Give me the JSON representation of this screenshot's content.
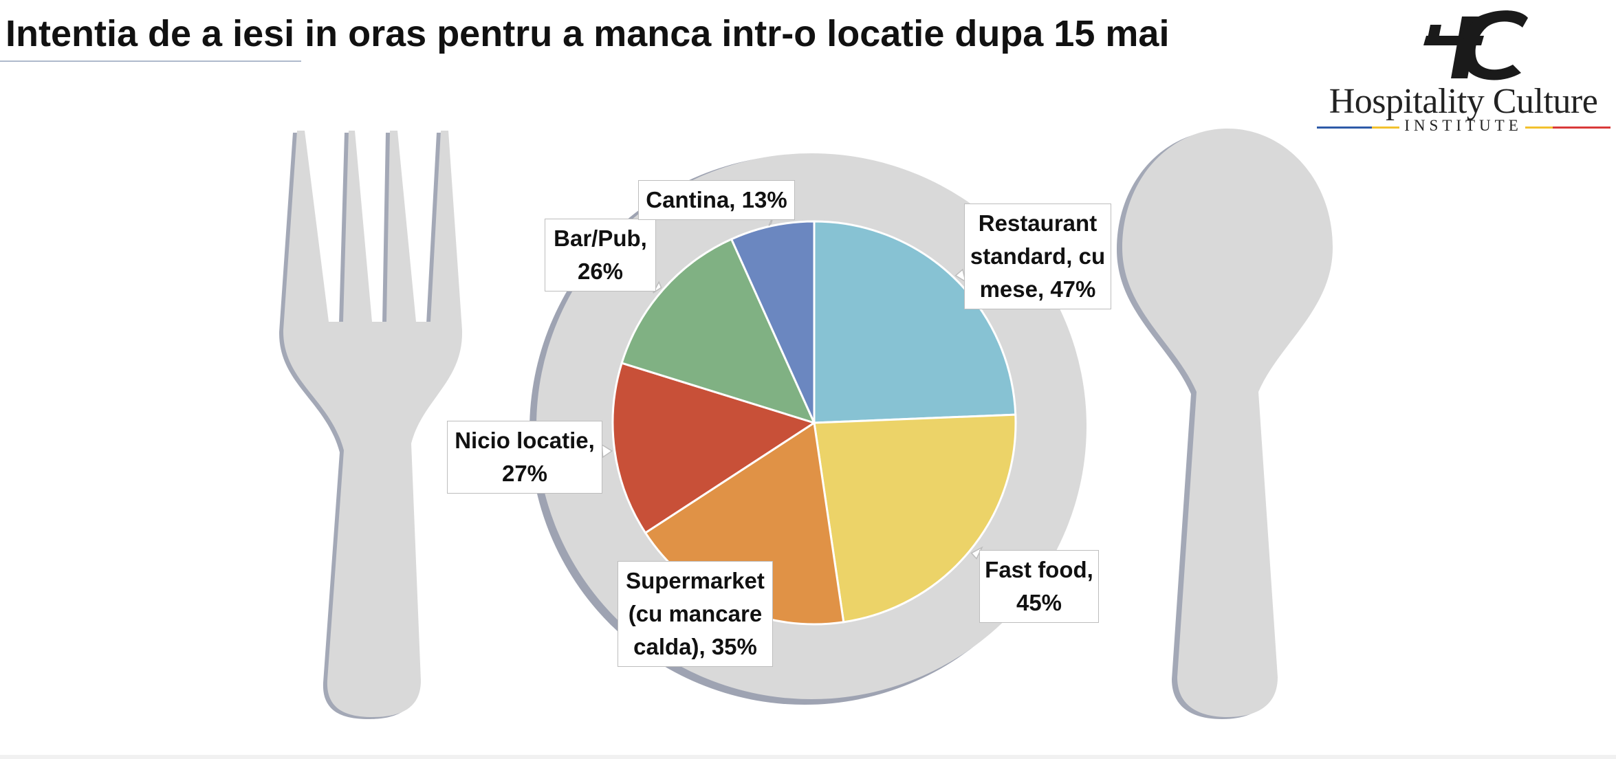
{
  "header": {
    "title": "Intentia de a iesi in oras pentru a manca intr-o locatie dupa 15 mai"
  },
  "logo": {
    "monogram": "HC",
    "name": "Hospitality Culture",
    "subtitle": "INSTITUTE",
    "line_colors": [
      "#2e5aa8",
      "#f2c12e",
      "#d93a3a"
    ]
  },
  "chart_data": {
    "type": "pie",
    "title": "Intentia de a iesi in oras pentru a manca intr-o locatie dupa 15 mai",
    "slices": [
      {
        "label": "Restaurant standard, cu mese, 47%",
        "category": "Restaurant standard, cu mese",
        "value": 47,
        "color": "#87c2d3"
      },
      {
        "label": "Fast food, 45%",
        "category": "Fast food",
        "value": 45,
        "color": "#ecd368"
      },
      {
        "label": "Supermarket (cu mancare calda), 35%",
        "category": "Supermarket (cu mancare calda)",
        "value": 35,
        "color": "#e09246"
      },
      {
        "label": "Nicio locatie, 27%",
        "category": "Nicio locatie",
        "value": 27,
        "color": "#c85038"
      },
      {
        "label": "Bar/Pub, 26%",
        "category": "Bar/Pub",
        "value": 26,
        "color": "#80b183"
      },
      {
        "label": "Cantina, 13%",
        "category": "Cantina",
        "value": 13,
        "color": "#6b87c0"
      }
    ],
    "start_angle": "12 o'clock",
    "direction": "clockwise",
    "legend": "none",
    "data_labels": "callouts"
  }
}
